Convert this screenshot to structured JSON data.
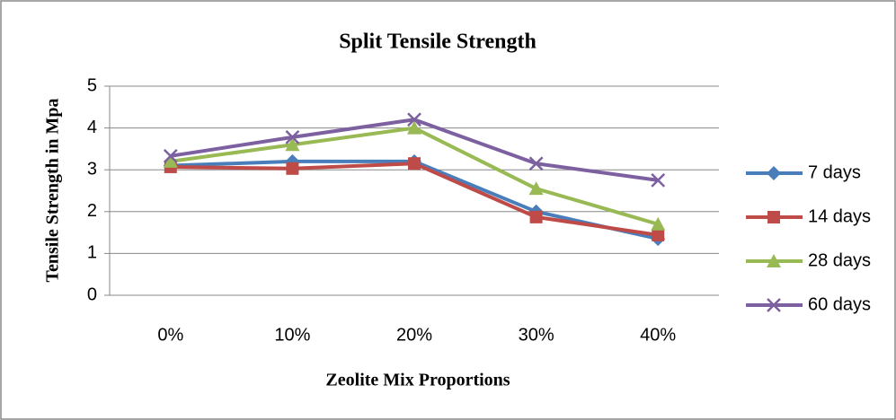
{
  "chart_data": {
    "type": "line",
    "title": "Split Tensile Strength",
    "x_label": "Zeolite Mix Proportions",
    "y_label": "Tensile Strength in Mpa",
    "categories": [
      "0%",
      "10%",
      "20%",
      "30%",
      "40%"
    ],
    "series": [
      {
        "name": "7 days",
        "color": "#4a7ebb",
        "marker": "diamond",
        "values": [
          3.1,
          3.2,
          3.2,
          2.0,
          1.35
        ]
      },
      {
        "name": "14 days",
        "color": "#be4b48",
        "marker": "square",
        "values": [
          3.07,
          3.03,
          3.15,
          1.87,
          1.44
        ]
      },
      {
        "name": "28 days",
        "color": "#98b954",
        "marker": "triangle",
        "values": [
          3.2,
          3.6,
          4.0,
          2.55,
          1.7
        ]
      },
      {
        "name": "60 days",
        "color": "#7d60a0",
        "marker": "x",
        "values": [
          3.33,
          3.78,
          4.2,
          3.15,
          2.75
        ]
      }
    ],
    "ylim": [
      0,
      5
    ],
    "yticks": [
      0,
      1,
      2,
      3,
      4,
      5
    ],
    "grid": true,
    "legend": "right"
  }
}
